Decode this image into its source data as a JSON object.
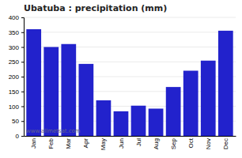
{
  "chart_data": {
    "type": "bar",
    "title": "Ubatuba : precipitation (mm)",
    "categories": [
      "Jan",
      "Feb",
      "Mar",
      "Apr",
      "May",
      "Jun",
      "Jul",
      "Aug",
      "Sep",
      "Oct",
      "Nov",
      "Dec"
    ],
    "values": [
      360,
      300,
      310,
      243,
      120,
      83,
      102,
      92,
      165,
      220,
      254,
      355
    ],
    "color": "#2222cc",
    "ylim": [
      0,
      400
    ],
    "yticks": [
      0,
      50,
      100,
      150,
      200,
      250,
      300,
      350,
      400
    ],
    "grid": true,
    "annotations": [
      "www.allmetsat.com"
    ]
  }
}
